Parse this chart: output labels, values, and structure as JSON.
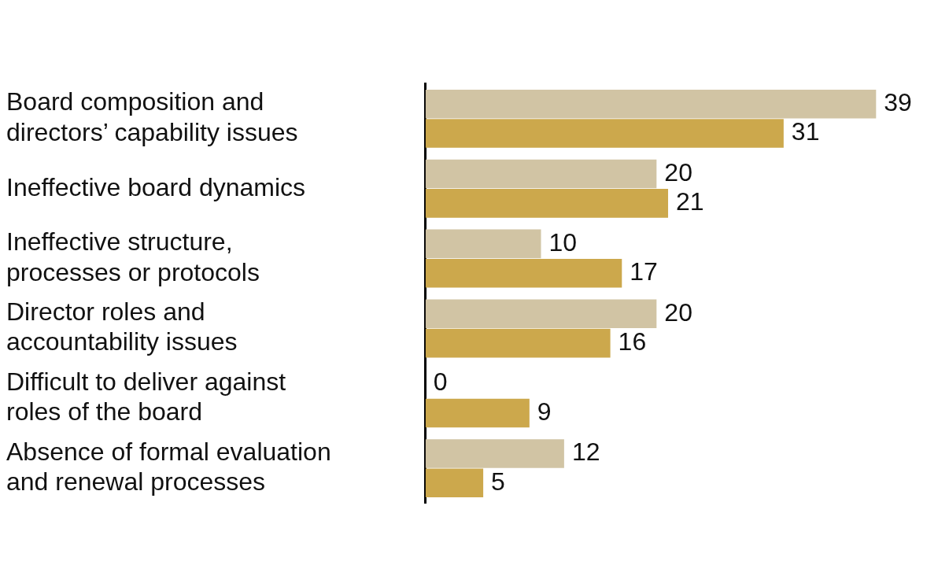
{
  "chart_data": {
    "type": "bar",
    "orientation": "horizontal",
    "categories": [
      "Board composition and\ndirectors’ capability issues",
      "Ineffective board dynamics",
      "Ineffective structure,\nprocesses or protocols",
      "Director roles and\naccountability issues",
      "Difficult to deliver against\nroles of the board",
      "Absence of formal evaluation\nand renewal processes"
    ],
    "series": [
      {
        "color": "#d1c4a4",
        "values": [
          39,
          20,
          10,
          20,
          0,
          12
        ]
      },
      {
        "color": "#cca84c",
        "values": [
          31,
          21,
          17,
          16,
          9,
          5
        ]
      }
    ],
    "data_labels": true
  }
}
